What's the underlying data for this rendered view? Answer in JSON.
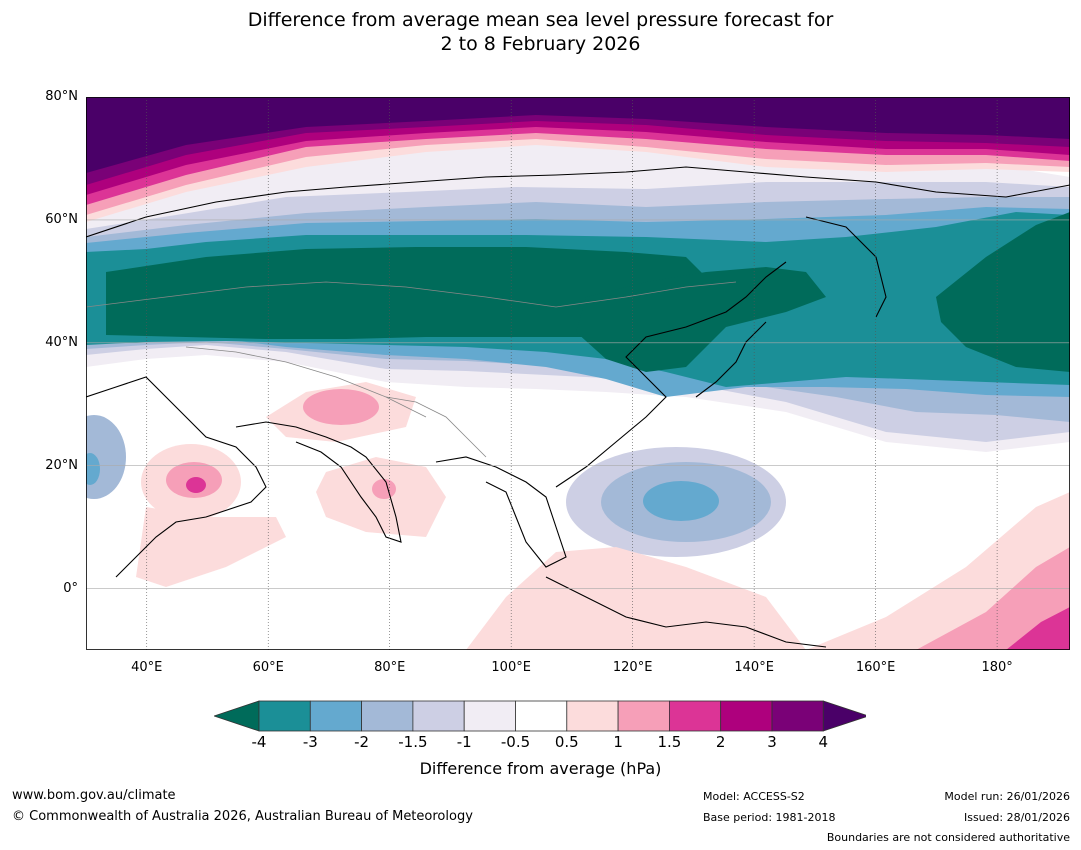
{
  "title": {
    "line1": "Difference from average mean sea level pressure forecast for",
    "line2": "2 to 8 February 2026"
  },
  "map": {
    "lat_ticks": [
      {
        "lat": 80,
        "label": "80°N"
      },
      {
        "lat": 60,
        "label": "60°N"
      },
      {
        "lat": 40,
        "label": "40°N"
      },
      {
        "lat": 20,
        "label": "20°N"
      },
      {
        "lat": 0,
        "label": "0°"
      }
    ],
    "lon_ticks": [
      {
        "lon": 40,
        "label": "40°E"
      },
      {
        "lon": 60,
        "label": "60°E"
      },
      {
        "lon": 80,
        "label": "80°E"
      },
      {
        "lon": 100,
        "label": "100°E"
      },
      {
        "lon": 120,
        "label": "120°E"
      },
      {
        "lon": 140,
        "label": "140°E"
      },
      {
        "lon": 160,
        "label": "160°E"
      },
      {
        "lon": 180,
        "label": "180°"
      }
    ],
    "lat_range": [
      -10,
      80
    ],
    "lon_range": [
      30,
      192
    ]
  },
  "colorbar": {
    "title": "Difference from average (hPa)",
    "ticks": [
      "-4",
      "-3",
      "-2",
      "-1.5",
      "-1",
      "-0.5",
      "0.5",
      "1",
      "1.5",
      "2",
      "3",
      "4"
    ],
    "colors": [
      "#006b5a",
      "#1b8f97",
      "#64a9cf",
      "#a3b9d7",
      "#cdcfe4",
      "#f1edf4",
      "#ffffff",
      "#fcdcdc",
      "#f69fb8",
      "#dc3496",
      "#ae007d",
      "#7a0177",
      "#4a0068"
    ]
  },
  "footer": {
    "website": "www.bom.gov.au/climate",
    "copyright": "© Commonwealth of Australia 2026, Australian Bureau of Meteorology",
    "model": "Model: ACCESS-S2",
    "base_period": "Base period: 1981-2018",
    "model_run": "Model run: 26/01/2026",
    "issued": "Issued: 28/01/2026",
    "boundaries_note": "Boundaries are not considered authoritative"
  }
}
